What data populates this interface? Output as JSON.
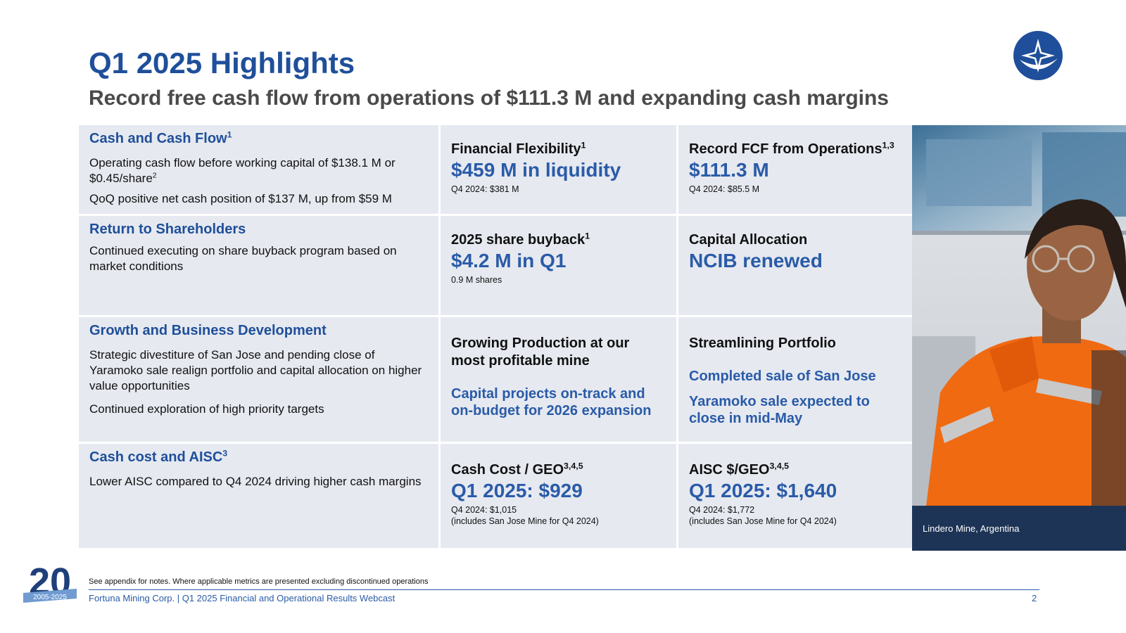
{
  "header": {
    "title": "Q1 2025 Highlights",
    "subtitle": "Record free cash flow from operations of $111.3 M and expanding cash margins"
  },
  "colors": {
    "brand_blue": "#1f4f9a",
    "value_blue": "#2a5ba8",
    "cell_bg": "#e6e9f0",
    "caption_bg": "#1e3456"
  },
  "rows": [
    {
      "heading": "Cash and Cash Flow",
      "heading_sup": "1",
      "body1": "Operating cash flow before working capital of $138.1 M or $0.45/share",
      "body1_sup": "2",
      "body2": "QoQ positive net cash position of $137 M, up from $59 M",
      "kpi1": {
        "label": "Financial Flexibility",
        "sup": "1",
        "value": "$459 M in liquidity",
        "note": "Q4 2024: $381 M"
      },
      "kpi2": {
        "label": "Record FCF from Operations",
        "sup": "1,3",
        "value": "$111.3 M",
        "note": "Q4 2024: $85.5 M"
      }
    },
    {
      "heading": "Return to Shareholders",
      "body1": "Continued executing on share buyback program based on market conditions",
      "kpi1": {
        "label": "2025 share buyback",
        "sup": "1",
        "value": "$4.2 M in Q1",
        "note": "0.9 M shares"
      },
      "kpi2": {
        "label": "Capital Allocation",
        "value": "NCIB renewed"
      }
    },
    {
      "heading": "Growth and Business Development",
      "body1": "Strategic divestiture of San Jose and pending close of Yaramoko sale realign portfolio and capital allocation on higher value opportunities",
      "body2": "Continued exploration of high priority targets",
      "kpi1": {
        "label": "Growing Production at our most profitable mine",
        "blue": "Capital projects on-track and on-budget for 2026 expansion"
      },
      "kpi2": {
        "label": "Streamlining Portfolio",
        "blue1": "Completed sale of San Jose",
        "blue2": "Yaramoko sale expected to close in mid-May"
      }
    },
    {
      "heading": "Cash cost and AISC",
      "heading_sup": "3",
      "body1": "Lower AISC compared to Q4 2024 driving higher cash margins",
      "kpi1": {
        "label": "Cash Cost / GEO",
        "sup": "3,4,5",
        "value": "Q1 2025: $929",
        "note1": "Q4 2024: $1,015",
        "note2": "(includes San Jose Mine for Q4 2024)"
      },
      "kpi2": {
        "label": "AISC $/GEO",
        "sup": "3,4,5",
        "value": "Q1 2025: $1,640",
        "note1": "Q4 2024: $1,772",
        "note2": "(includes San Jose Mine for Q4 2024)"
      }
    }
  ],
  "photo": {
    "caption": "Lindero Mine, Argentina"
  },
  "footer": {
    "note": "See appendix for notes. Where applicable metrics are presented excluding discontinued operations",
    "text": "Fortuna Mining Corp. | Q1 2025 Financial and Operational Results Webcast",
    "page": "2",
    "anniversary_number": "20",
    "anniversary_years": "2005-2025"
  }
}
